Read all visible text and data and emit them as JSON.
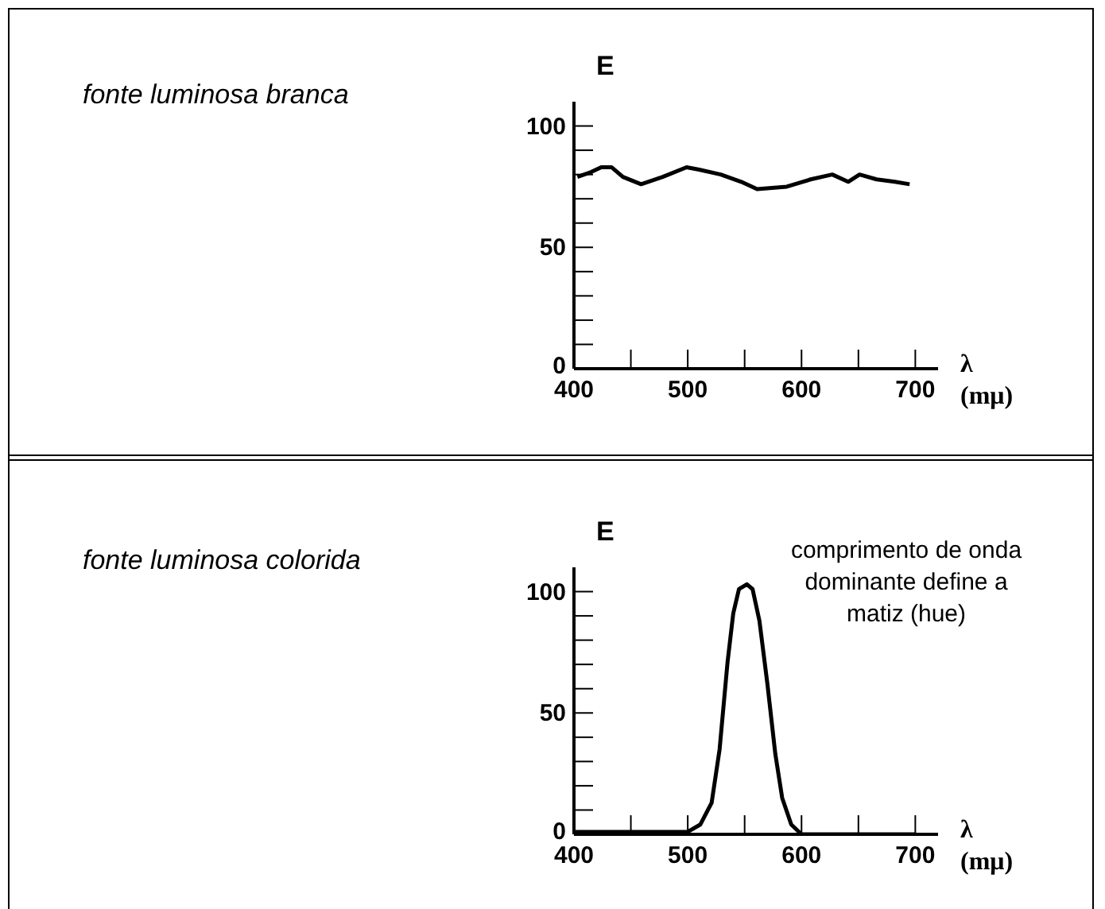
{
  "chart_data": [
    {
      "type": "line",
      "annotations": [
        "fonte luminosa branca"
      ],
      "xlabel": "λ (mμ)",
      "ylabel": "E",
      "color": "#000000",
      "x": [
        403,
        415,
        424,
        433,
        443,
        459,
        478,
        499,
        510,
        529,
        547,
        561,
        587,
        608,
        627,
        641,
        651,
        666,
        682,
        695
      ],
      "values": [
        79,
        81,
        83,
        83,
        79,
        76,
        79,
        83,
        82,
        80,
        77,
        74,
        75,
        78,
        80,
        77,
        80,
        78,
        77,
        76
      ],
      "xlim": [
        400,
        720
      ],
      "ylim": [
        0,
        110
      ],
      "xticks": [
        400,
        {
          "value": 450,
          "label": null
        },
        500,
        {
          "value": 550,
          "label": null
        },
        600,
        {
          "value": 650,
          "label": null
        },
        700
      ],
      "yticks": [
        0,
        {
          "value": 10,
          "label": null
        },
        {
          "value": 20,
          "label": null
        },
        {
          "value": 30,
          "label": null
        },
        {
          "value": 40,
          "label": null
        },
        50,
        {
          "value": 60,
          "label": null
        },
        {
          "value": 70,
          "label": null
        },
        {
          "value": 80,
          "label": null
        },
        {
          "value": 90,
          "label": null
        },
        100
      ]
    },
    {
      "type": "line",
      "xlabel": "λ (mμ)",
      "ylabel": "E",
      "color": "#000000",
      "x": [
        400,
        500,
        511,
        521,
        528,
        535,
        540,
        545,
        552,
        557,
        563,
        570,
        577,
        583,
        591,
        600,
        700
      ],
      "values": [
        1,
        1,
        4,
        13,
        35,
        71,
        91,
        101,
        103,
        101,
        88,
        62,
        33,
        15,
        4,
        0,
        0
      ],
      "xlim": [
        400,
        720
      ],
      "ylim": [
        0,
        110
      ],
      "xticks": [
        400,
        {
          "value": 450,
          "label": null
        },
        500,
        {
          "value": 550,
          "label": null
        },
        600,
        {
          "value": 650,
          "label": null
        },
        700
      ],
      "yticks": [
        0,
        {
          "value": 10,
          "label": null
        },
        {
          "value": 20,
          "label": null
        },
        {
          "value": 30,
          "label": null
        },
        {
          "value": 40,
          "label": null
        },
        50,
        {
          "value": 60,
          "label": null
        },
        {
          "value": 70,
          "label": null
        },
        {
          "value": 80,
          "label": null
        },
        {
          "value": 90,
          "label": null
        },
        100
      ],
      "annotations": [
        "fonte luminosa colorida",
        "comprimento de onda dominante define a matiz (hue)"
      ]
    }
  ]
}
